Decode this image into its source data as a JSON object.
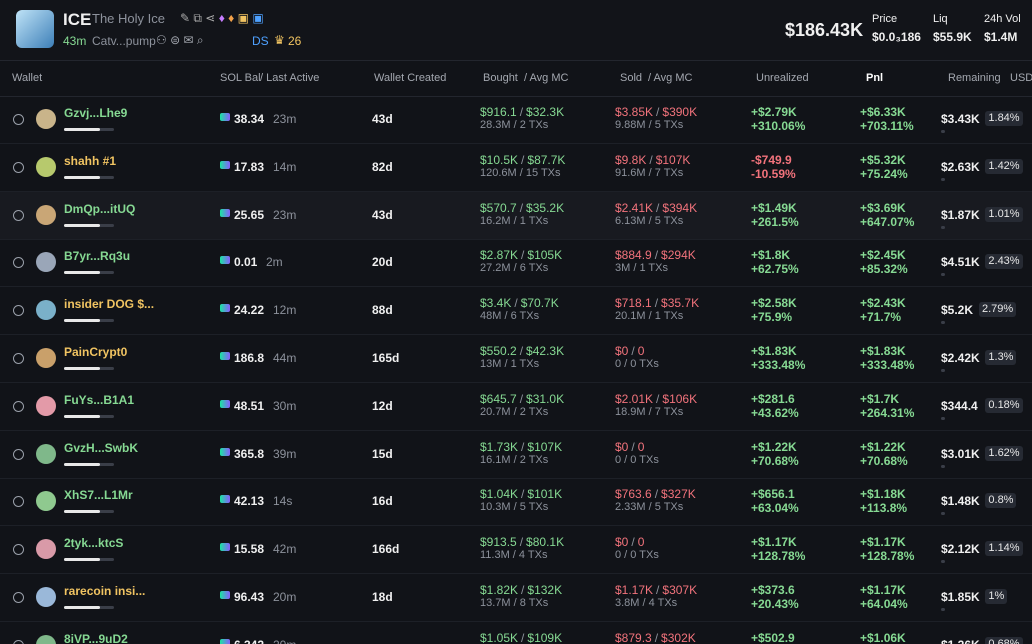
{
  "header": {
    "symbol": "ICE",
    "name": "The Holy Ice",
    "age": "43m",
    "address": "Catv...pump",
    "ds": "DS",
    "holders_count": "26",
    "market_cap": "$186.43K",
    "stats": [
      {
        "label": "Price",
        "value": "$0.0₃186"
      },
      {
        "label": "Liq",
        "value": "$55.9K"
      },
      {
        "label": "24h Vol",
        "value": "$1.4M"
      }
    ]
  },
  "separator": "/",
  "columns": {
    "wallet": "Wallet",
    "sol_bal": "SOL Bal",
    "last_active": "/ Last Active",
    "created": "Wallet Created",
    "bought": "Bought",
    "bought_mc": "/ Avg MC",
    "sold": "Sold",
    "sold_mc": "/ Avg MC",
    "unrealized": "Unrealized",
    "pnl": "Pnl",
    "remaining": "Remaining",
    "usd": "USD"
  },
  "rows": [
    {
      "wallet": "Gzvj...Lhe9",
      "sol": "38.34",
      "last_active": "23m",
      "created": "43d",
      "bought": "$916.1",
      "bought_mc": "$32.3K",
      "bought_sub": "28.3M / 2 TXs",
      "sold": "$3.85K",
      "sold_mc": "$390K",
      "sold_sub": "9.88M / 5 TXs",
      "unrealized": "+$2.79K",
      "unrealized_pct": "+310.06%",
      "pnl": "+$6.33K",
      "pnl_pct": "+703.11%",
      "remaining": "$3.43K",
      "remaining_pct": "1.84%"
    },
    {
      "wallet": "shahh #1",
      "sol": "17.83",
      "last_active": "14m",
      "created": "82d",
      "bought": "$10.5K",
      "bought_mc": "$87.7K",
      "bought_sub": "120.6M / 15 TXs",
      "sold": "$9.8K",
      "sold_mc": "$107K",
      "sold_sub": "91.6M / 7 TXs",
      "unrealized": "-$749.9",
      "unrealized_pct": "-10.59%",
      "pnl": "+$5.32K",
      "pnl_pct": "+75.24%",
      "remaining": "$2.63K",
      "remaining_pct": "1.42%"
    },
    {
      "wallet": "DmQp...itUQ",
      "sol": "25.65",
      "last_active": "23m",
      "created": "43d",
      "bought": "$570.7",
      "bought_mc": "$35.2K",
      "bought_sub": "16.2M / 1 TXs",
      "sold": "$2.41K",
      "sold_mc": "$394K",
      "sold_sub": "6.13M / 5 TXs",
      "unrealized": "+$1.49K",
      "unrealized_pct": "+261.5%",
      "pnl": "+$3.69K",
      "pnl_pct": "+647.07%",
      "remaining": "$1.87K",
      "remaining_pct": "1.01%"
    },
    {
      "wallet": "B7yr...Rq3u",
      "sol": "0.01",
      "last_active": "2m",
      "created": "20d",
      "bought": "$2.87K",
      "bought_mc": "$105K",
      "bought_sub": "27.2M / 6 TXs",
      "sold": "$884.9",
      "sold_mc": "$294K",
      "sold_sub": "3M / 1 TXs",
      "unrealized": "+$1.8K",
      "unrealized_pct": "+62.75%",
      "pnl": "+$2.45K",
      "pnl_pct": "+85.32%",
      "remaining": "$4.51K",
      "remaining_pct": "2.43%"
    },
    {
      "wallet": "insider DOG $...",
      "sol": "24.22",
      "last_active": "12m",
      "created": "88d",
      "bought": "$3.4K",
      "bought_mc": "$70.7K",
      "bought_sub": "48M / 6 TXs",
      "sold": "$718.1",
      "sold_mc": "$35.7K",
      "sold_sub": "20.1M / 1 TXs",
      "unrealized": "+$2.58K",
      "unrealized_pct": "+75.9%",
      "pnl": "+$2.43K",
      "pnl_pct": "+71.7%",
      "remaining": "$5.2K",
      "remaining_pct": "2.79%"
    },
    {
      "wallet": "PainCrypt0",
      "sol": "186.8",
      "last_active": "44m",
      "created": "165d",
      "bought": "$550.2",
      "bought_mc": "$42.3K",
      "bought_sub": "13M / 1 TXs",
      "sold": "$0",
      "sold_mc": "0",
      "sold_sub": "0 / 0 TXs",
      "unrealized": "+$1.83K",
      "unrealized_pct": "+333.48%",
      "pnl": "+$1.83K",
      "pnl_pct": "+333.48%",
      "remaining": "$2.42K",
      "remaining_pct": "1.3%"
    },
    {
      "wallet": "FuYs...B1A1",
      "sol": "48.51",
      "last_active": "30m",
      "created": "12d",
      "bought": "$645.7",
      "bought_mc": "$31.0K",
      "bought_sub": "20.7M / 2 TXs",
      "sold": "$2.01K",
      "sold_mc": "$106K",
      "sold_sub": "18.9M / 7 TXs",
      "unrealized": "+$281.6",
      "unrealized_pct": "+43.62%",
      "pnl": "+$1.7K",
      "pnl_pct": "+264.31%",
      "remaining": "$344.4",
      "remaining_pct": "0.18%"
    },
    {
      "wallet": "GvzH...SwbK",
      "sol": "365.8",
      "last_active": "39m",
      "created": "15d",
      "bought": "$1.73K",
      "bought_mc": "$107K",
      "bought_sub": "16.1M / 2 TXs",
      "sold": "$0",
      "sold_mc": "0",
      "sold_sub": "0 / 0 TXs",
      "unrealized": "+$1.22K",
      "unrealized_pct": "+70.68%",
      "pnl": "+$1.22K",
      "pnl_pct": "+70.68%",
      "remaining": "$3.01K",
      "remaining_pct": "1.62%"
    },
    {
      "wallet": "XhS7...L1Mr",
      "sol": "42.13",
      "last_active": "14s",
      "created": "16d",
      "bought": "$1.04K",
      "bought_mc": "$101K",
      "bought_sub": "10.3M / 5 TXs",
      "sold": "$763.6",
      "sold_mc": "$327K",
      "sold_sub": "2.33M / 5 TXs",
      "unrealized": "+$656.1",
      "unrealized_pct": "+63.04%",
      "pnl": "+$1.18K",
      "pnl_pct": "+113.8%",
      "remaining": "$1.48K",
      "remaining_pct": "0.8%"
    },
    {
      "wallet": "2tyk...ktcS",
      "sol": "15.58",
      "last_active": "42m",
      "created": "166d",
      "bought": "$913.5",
      "bought_mc": "$80.1K",
      "bought_sub": "11.3M / 4 TXs",
      "sold": "$0",
      "sold_mc": "0",
      "sold_sub": "0 / 0 TXs",
      "unrealized": "+$1.17K",
      "unrealized_pct": "+128.78%",
      "pnl": "+$1.17K",
      "pnl_pct": "+128.78%",
      "remaining": "$2.12K",
      "remaining_pct": "1.14%"
    },
    {
      "wallet": "rarecoin insi...",
      "sol": "96.43",
      "last_active": "20m",
      "created": "18d",
      "bought": "$1.82K",
      "bought_mc": "$132K",
      "bought_sub": "13.7M / 8 TXs",
      "sold": "$1.17K",
      "sold_mc": "$307K",
      "sold_sub": "3.8M / 4 TXs",
      "unrealized": "+$373.6",
      "unrealized_pct": "+20.43%",
      "pnl": "+$1.17K",
      "pnl_pct": "+64.04%",
      "remaining": "$1.85K",
      "remaining_pct": "1%"
    },
    {
      "wallet": "8iVP...9uD2",
      "sol": "6.342",
      "last_active": "20m",
      "bought": "$1.05K",
      "bought_mc": "$109K",
      "sold": "$879.3",
      "sold_mc": "$302K",
      "unrealized": "+$502.9",
      "pnl": "+$1.06K",
      "remaining": "$1.26K",
      "remaining_pct": "0.68%"
    }
  ]
}
